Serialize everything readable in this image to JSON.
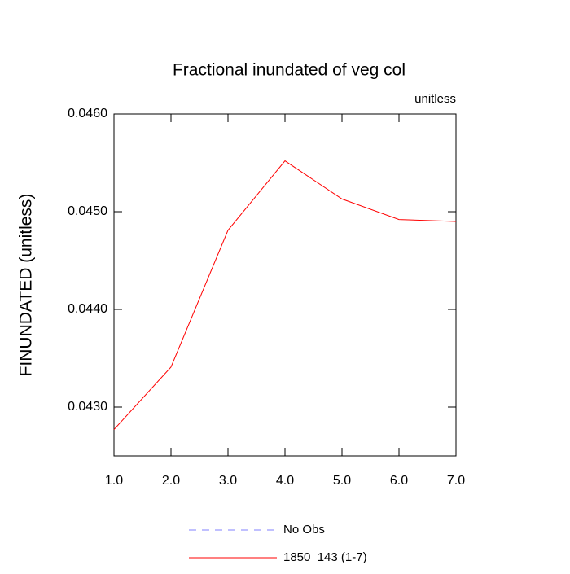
{
  "chart_data": {
    "type": "line",
    "title": "Fractional inundated of veg col",
    "units_label": "unitless",
    "y_label": "FINUNDATED  (unitless)",
    "x": [
      1,
      2,
      3,
      4,
      5,
      6,
      7
    ],
    "series": [
      {
        "name": "1850_143 (1-7)",
        "color": "#ff0000",
        "values": [
          0.04277,
          0.04341,
          0.04481,
          0.04552,
          0.04513,
          0.04492,
          0.0449
        ]
      }
    ],
    "legend_extra": [
      {
        "name": "No Obs",
        "color": "#8080ff",
        "dashed": true
      }
    ],
    "xlim": [
      1,
      7
    ],
    "xticks": [
      {
        "value": 1,
        "label": "1.0"
      },
      {
        "value": 2,
        "label": "2.0"
      },
      {
        "value": 3,
        "label": "3.0"
      },
      {
        "value": 4,
        "label": "4.0"
      },
      {
        "value": 5,
        "label": "5.0"
      },
      {
        "value": 6,
        "label": "6.0"
      },
      {
        "value": 7,
        "label": "7.0"
      }
    ],
    "ylim": [
      0.0425,
      0.046
    ],
    "yticks": [
      {
        "value": 0.043,
        "label": "0.0430"
      },
      {
        "value": 0.044,
        "label": "0.0440"
      },
      {
        "value": 0.045,
        "label": "0.0450"
      },
      {
        "value": 0.046,
        "label": "0.0460"
      }
    ]
  }
}
